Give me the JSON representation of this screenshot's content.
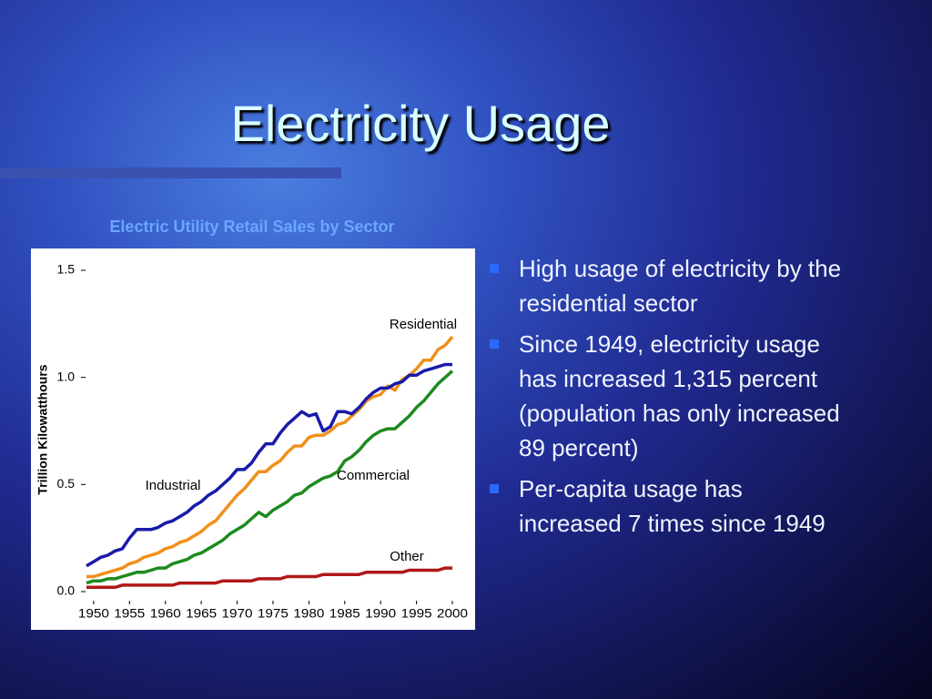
{
  "title": "Electricity Usage",
  "bullets": [
    "High usage of electricity by the residential sector",
    "Since 1949, electricity usage has increased 1,315 percent (population has only increased 89 percent)",
    "Per-capita usage has increased 7 times since 1949"
  ],
  "chart_data": {
    "type": "line",
    "title": "Electric Utility Retail Sales by Sector",
    "y_label": "Trillion Kilowatthours",
    "x": [
      1949,
      1950,
      1951,
      1952,
      1953,
      1954,
      1955,
      1956,
      1957,
      1958,
      1959,
      1960,
      1961,
      1962,
      1963,
      1964,
      1965,
      1966,
      1967,
      1968,
      1969,
      1970,
      1971,
      1972,
      1973,
      1974,
      1975,
      1976,
      1977,
      1978,
      1979,
      1980,
      1981,
      1982,
      1983,
      1984,
      1985,
      1986,
      1987,
      1988,
      1989,
      1990,
      1991,
      1992,
      1993,
      1994,
      1995,
      1996,
      1997,
      1998,
      1999,
      2000
    ],
    "series": [
      {
        "name": "Residential",
        "color": "#f0901a",
        "values": [
          0.07,
          0.07,
          0.08,
          0.09,
          0.1,
          0.11,
          0.13,
          0.14,
          0.16,
          0.17,
          0.18,
          0.2,
          0.21,
          0.23,
          0.24,
          0.26,
          0.28,
          0.31,
          0.33,
          0.37,
          0.41,
          0.45,
          0.48,
          0.52,
          0.56,
          0.56,
          0.59,
          0.61,
          0.65,
          0.68,
          0.68,
          0.72,
          0.73,
          0.73,
          0.75,
          0.78,
          0.79,
          0.82,
          0.85,
          0.89,
          0.91,
          0.92,
          0.96,
          0.94,
          0.99,
          1.01,
          1.04,
          1.08,
          1.08,
          1.13,
          1.15,
          1.19
        ]
      },
      {
        "name": "Commercial",
        "color": "#1e8a1e",
        "values": [
          0.04,
          0.05,
          0.05,
          0.06,
          0.06,
          0.07,
          0.08,
          0.09,
          0.09,
          0.1,
          0.11,
          0.11,
          0.13,
          0.14,
          0.15,
          0.17,
          0.18,
          0.2,
          0.22,
          0.24,
          0.27,
          0.29,
          0.31,
          0.34,
          0.37,
          0.35,
          0.38,
          0.4,
          0.42,
          0.45,
          0.46,
          0.49,
          0.51,
          0.53,
          0.54,
          0.56,
          0.61,
          0.63,
          0.66,
          0.7,
          0.73,
          0.75,
          0.76,
          0.76,
          0.79,
          0.82,
          0.86,
          0.89,
          0.93,
          0.97,
          1.0,
          1.03
        ]
      },
      {
        "name": "Industrial",
        "color": "#1a1aaa",
        "values": [
          0.12,
          0.14,
          0.16,
          0.17,
          0.19,
          0.2,
          0.25,
          0.29,
          0.29,
          0.29,
          0.3,
          0.32,
          0.33,
          0.35,
          0.37,
          0.4,
          0.42,
          0.45,
          0.47,
          0.5,
          0.53,
          0.57,
          0.57,
          0.6,
          0.65,
          0.69,
          0.69,
          0.74,
          0.78,
          0.81,
          0.84,
          0.82,
          0.83,
          0.75,
          0.77,
          0.84,
          0.84,
          0.83,
          0.86,
          0.9,
          0.93,
          0.95,
          0.95,
          0.97,
          0.98,
          1.01,
          1.01,
          1.03,
          1.04,
          1.05,
          1.06,
          1.06
        ]
      },
      {
        "name": "Other",
        "color": "#b01818",
        "values": [
          0.02,
          0.02,
          0.02,
          0.02,
          0.02,
          0.03,
          0.03,
          0.03,
          0.03,
          0.03,
          0.03,
          0.03,
          0.03,
          0.04,
          0.04,
          0.04,
          0.04,
          0.04,
          0.04,
          0.05,
          0.05,
          0.05,
          0.05,
          0.05,
          0.06,
          0.06,
          0.06,
          0.06,
          0.07,
          0.07,
          0.07,
          0.07,
          0.07,
          0.08,
          0.08,
          0.08,
          0.08,
          0.08,
          0.08,
          0.09,
          0.09,
          0.09,
          0.09,
          0.09,
          0.09,
          0.1,
          0.1,
          0.1,
          0.1,
          0.1,
          0.11,
          0.11
        ]
      }
    ],
    "xlim": [
      1949,
      2000
    ],
    "xticks": [
      1950,
      1955,
      1960,
      1965,
      1970,
      1975,
      1980,
      1985,
      1990,
      1995,
      2000
    ],
    "ylim": [
      0,
      1.5
    ],
    "yticks": [
      {
        "value": 0,
        "label": "0.0"
      },
      0.5,
      {
        "value": 1,
        "label": "1.0"
      },
      1.5
    ],
    "grid": false
  }
}
